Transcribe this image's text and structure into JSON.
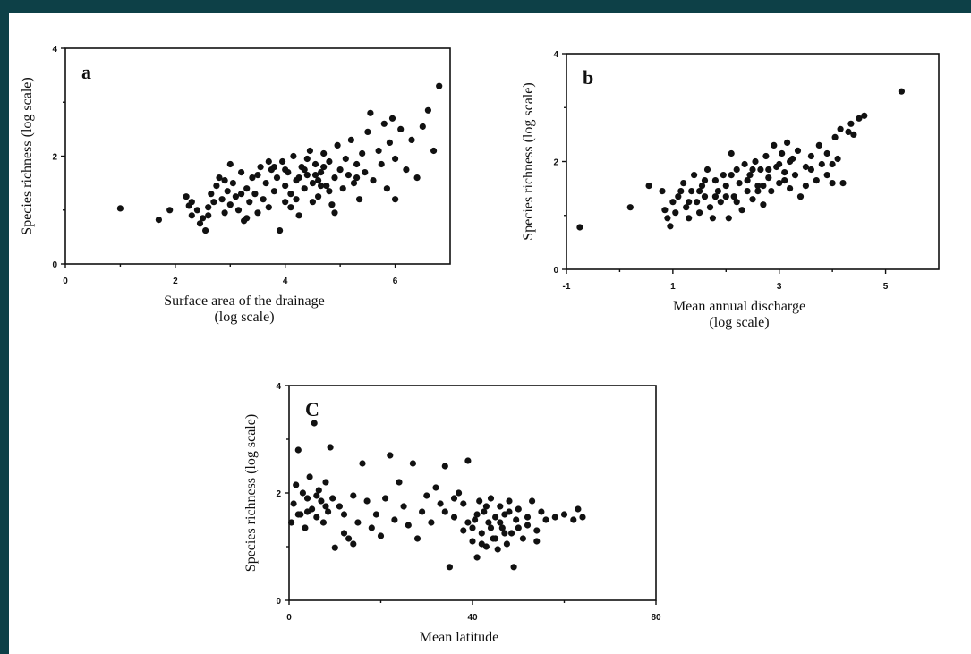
{
  "colors": {
    "frame": "#0d4047",
    "paper": "#ffffff",
    "ink": "#111111"
  },
  "chart_data": [
    {
      "id": "a",
      "type": "scatter",
      "panel_label": "a",
      "xlabel": [
        "Surface area of the drainage",
        "(log scale)"
      ],
      "ylabel": "Species richness (log scale)",
      "xlim": [
        0,
        7
      ],
      "ylim": [
        0,
        4
      ],
      "xticks": [
        0,
        2,
        4,
        6
      ],
      "xtick_labels": [
        "0",
        "2",
        "4",
        "6"
      ],
      "yticks": [
        0,
        2,
        4
      ],
      "ytick_labels": [
        "0",
        "2",
        "4"
      ],
      "grid": false,
      "points": [
        [
          1.0,
          1.03
        ],
        [
          1.7,
          0.82
        ],
        [
          1.9,
          1.0
        ],
        [
          2.2,
          1.25
        ],
        [
          2.25,
          1.08
        ],
        [
          2.3,
          0.9
        ],
        [
          2.4,
          1.0
        ],
        [
          2.45,
          0.75
        ],
        [
          2.5,
          0.85
        ],
        [
          2.55,
          0.62
        ],
        [
          2.6,
          1.05
        ],
        [
          2.65,
          1.3
        ],
        [
          2.7,
          1.15
        ],
        [
          2.75,
          1.45
        ],
        [
          2.8,
          1.6
        ],
        [
          2.85,
          1.2
        ],
        [
          2.9,
          0.95
        ],
        [
          2.95,
          1.35
        ],
        [
          3.0,
          1.1
        ],
        [
          3.0,
          1.85
        ],
        [
          3.05,
          1.5
        ],
        [
          3.1,
          1.25
        ],
        [
          3.15,
          1.0
        ],
        [
          3.2,
          1.7
        ],
        [
          3.25,
          0.8
        ],
        [
          3.3,
          1.4
        ],
        [
          3.35,
          1.15
        ],
        [
          3.4,
          1.6
        ],
        [
          3.45,
          1.3
        ],
        [
          3.5,
          0.95
        ],
        [
          3.55,
          1.8
        ],
        [
          3.6,
          1.2
        ],
        [
          3.65,
          1.5
        ],
        [
          3.7,
          1.05
        ],
        [
          3.75,
          1.75
        ],
        [
          3.8,
          1.35
        ],
        [
          3.85,
          1.6
        ],
        [
          3.9,
          0.62
        ],
        [
          3.95,
          1.9
        ],
        [
          4.0,
          1.45
        ],
        [
          4.0,
          1.15
        ],
        [
          4.05,
          1.7
        ],
        [
          4.1,
          1.3
        ],
        [
          4.15,
          2.0
        ],
        [
          4.2,
          1.55
        ],
        [
          4.25,
          0.9
        ],
        [
          4.3,
          1.8
        ],
        [
          4.35,
          1.4
        ],
        [
          4.4,
          1.65
        ],
        [
          4.45,
          2.1
        ],
        [
          4.5,
          1.5
        ],
        [
          4.55,
          1.85
        ],
        [
          4.6,
          1.25
        ],
        [
          4.65,
          1.7
        ],
        [
          4.7,
          2.05
        ],
        [
          4.75,
          1.45
        ],
        [
          4.8,
          1.9
        ],
        [
          4.85,
          1.1
        ],
        [
          4.9,
          1.6
        ],
        [
          4.95,
          2.2
        ],
        [
          5.0,
          1.75
        ],
        [
          5.05,
          1.4
        ],
        [
          5.1,
          1.95
        ],
        [
          5.15,
          1.65
        ],
        [
          5.2,
          2.3
        ],
        [
          5.25,
          1.5
        ],
        [
          5.3,
          1.85
        ],
        [
          5.35,
          1.2
        ],
        [
          5.4,
          2.05
        ],
        [
          5.45,
          1.7
        ],
        [
          5.5,
          2.45
        ],
        [
          5.55,
          2.8
        ],
        [
          5.6,
          1.55
        ],
        [
          5.7,
          2.1
        ],
        [
          5.75,
          1.85
        ],
        [
          5.8,
          2.6
        ],
        [
          5.85,
          1.4
        ],
        [
          5.9,
          2.25
        ],
        [
          5.95,
          2.7
        ],
        [
          6.0,
          1.95
        ],
        [
          6.0,
          1.2
        ],
        [
          6.1,
          2.5
        ],
        [
          6.2,
          1.75
        ],
        [
          6.3,
          2.3
        ],
        [
          6.4,
          1.6
        ],
        [
          6.5,
          2.55
        ],
        [
          6.6,
          2.85
        ],
        [
          6.7,
          2.1
        ],
        [
          6.8,
          3.3
        ],
        [
          2.3,
          1.15
        ],
        [
          2.6,
          0.9
        ],
        [
          2.9,
          1.55
        ],
        [
          3.2,
          1.3
        ],
        [
          3.5,
          1.65
        ],
        [
          3.7,
          1.9
        ],
        [
          4.0,
          1.75
        ],
        [
          4.2,
          1.2
        ],
        [
          4.4,
          1.95
        ],
        [
          4.6,
          1.55
        ],
        [
          4.8,
          1.35
        ],
        [
          3.3,
          0.85
        ],
        [
          4.1,
          1.05
        ],
        [
          4.9,
          0.95
        ],
        [
          5.3,
          1.6
        ],
        [
          4.5,
          1.15
        ],
        [
          3.8,
          1.8
        ],
        [
          4.35,
          1.75
        ],
        [
          4.7,
          1.8
        ],
        [
          4.55,
          1.65
        ],
        [
          4.25,
          1.6
        ],
        [
          4.65,
          1.45
        ]
      ]
    },
    {
      "id": "b",
      "type": "scatter",
      "panel_label": "b",
      "xlabel": [
        "Mean annual discharge",
        "(log scale)"
      ],
      "ylabel": "Species richness (log scale)",
      "xlim": [
        -1,
        6
      ],
      "ylim": [
        0,
        4
      ],
      "xticks": [
        -1,
        1,
        3,
        5
      ],
      "xtick_labels": [
        "-1",
        "1",
        "3",
        "5"
      ],
      "yticks": [
        0,
        2,
        4
      ],
      "ytick_labels": [
        "0",
        "2",
        "4"
      ],
      "grid": false,
      "points": [
        [
          -0.75,
          0.78
        ],
        [
          0.2,
          1.15
        ],
        [
          0.55,
          1.55
        ],
        [
          0.8,
          1.45
        ],
        [
          0.85,
          1.1
        ],
        [
          0.9,
          0.95
        ],
        [
          0.95,
          0.8
        ],
        [
          1.0,
          1.25
        ],
        [
          1.05,
          1.05
        ],
        [
          1.1,
          1.35
        ],
        [
          1.2,
          1.6
        ],
        [
          1.25,
          1.15
        ],
        [
          1.3,
          0.95
        ],
        [
          1.35,
          1.45
        ],
        [
          1.4,
          1.75
        ],
        [
          1.45,
          1.25
        ],
        [
          1.5,
          1.05
        ],
        [
          1.55,
          1.55
        ],
        [
          1.6,
          1.35
        ],
        [
          1.65,
          1.85
        ],
        [
          1.7,
          1.15
        ],
        [
          1.75,
          0.95
        ],
        [
          1.8,
          1.65
        ],
        [
          1.85,
          1.45
        ],
        [
          1.9,
          1.25
        ],
        [
          1.95,
          1.75
        ],
        [
          2.0,
          1.55
        ],
        [
          2.05,
          0.95
        ],
        [
          2.1,
          2.15
        ],
        [
          2.15,
          1.35
        ],
        [
          2.2,
          1.85
        ],
        [
          2.25,
          1.6
        ],
        [
          2.3,
          1.1
        ],
        [
          2.35,
          1.95
        ],
        [
          2.4,
          1.45
        ],
        [
          2.45,
          1.75
        ],
        [
          2.5,
          1.3
        ],
        [
          2.55,
          2.0
        ],
        [
          2.6,
          1.55
        ],
        [
          2.65,
          1.85
        ],
        [
          2.7,
          1.2
        ],
        [
          2.75,
          2.1
        ],
        [
          2.8,
          1.7
        ],
        [
          2.85,
          1.45
        ],
        [
          2.9,
          2.3
        ],
        [
          2.95,
          1.9
        ],
        [
          3.0,
          1.6
        ],
        [
          3.05,
          2.15
        ],
        [
          3.1,
          1.8
        ],
        [
          3.15,
          2.35
        ],
        [
          3.2,
          1.5
        ],
        [
          3.25,
          2.05
        ],
        [
          3.3,
          1.75
        ],
        [
          3.35,
          2.2
        ],
        [
          3.4,
          1.35
        ],
        [
          3.5,
          1.9
        ],
        [
          3.6,
          2.1
        ],
        [
          3.7,
          1.65
        ],
        [
          3.75,
          2.3
        ],
        [
          3.8,
          1.95
        ],
        [
          3.9,
          2.15
        ],
        [
          4.0,
          1.6
        ],
        [
          4.05,
          2.45
        ],
        [
          4.1,
          2.05
        ],
        [
          4.15,
          2.6
        ],
        [
          4.2,
          1.6
        ],
        [
          4.3,
          2.55
        ],
        [
          4.35,
          2.7
        ],
        [
          4.4,
          2.5
        ],
        [
          4.5,
          2.8
        ],
        [
          4.6,
          2.85
        ],
        [
          5.3,
          3.3
        ],
        [
          1.15,
          1.45
        ],
        [
          1.6,
          1.65
        ],
        [
          2.0,
          1.35
        ],
        [
          2.4,
          1.65
        ],
        [
          2.6,
          1.45
        ],
        [
          2.8,
          1.85
        ],
        [
          3.0,
          1.95
        ],
        [
          3.2,
          2.0
        ],
        [
          3.5,
          1.55
        ],
        [
          3.9,
          1.75
        ],
        [
          1.3,
          1.25
        ],
        [
          1.8,
          1.35
        ],
        [
          2.2,
          1.25
        ],
        [
          2.7,
          1.55
        ],
        [
          3.1,
          1.65
        ],
        [
          3.6,
          1.85
        ],
        [
          4.0,
          1.95
        ],
        [
          1.5,
          1.45
        ],
        [
          2.1,
          1.75
        ],
        [
          2.5,
          1.85
        ]
      ]
    },
    {
      "id": "c",
      "type": "scatter",
      "panel_label": "C",
      "xlabel": [
        "Mean latitude"
      ],
      "ylabel": "Species richness (log scale)",
      "xlim": [
        0,
        80
      ],
      "ylim": [
        0,
        4
      ],
      "xticks": [
        0,
        40,
        80
      ],
      "xtick_labels": [
        "0",
        "40",
        "80"
      ],
      "yticks": [
        0,
        2,
        4
      ],
      "ytick_labels": [
        "0",
        "2",
        "4"
      ],
      "grid": false,
      "points": [
        [
          0.5,
          1.45
        ],
        [
          1.0,
          1.8
        ],
        [
          1.5,
          2.15
        ],
        [
          2.0,
          2.8
        ],
        [
          2.5,
          1.6
        ],
        [
          3.0,
          2.0
        ],
        [
          3.5,
          1.35
        ],
        [
          4.0,
          1.9
        ],
        [
          4.5,
          2.3
        ],
        [
          5.0,
          1.7
        ],
        [
          5.5,
          3.3
        ],
        [
          6.0,
          1.55
        ],
        [
          6.5,
          2.05
        ],
        [
          7.0,
          1.85
        ],
        [
          7.5,
          1.45
        ],
        [
          8.0,
          2.2
        ],
        [
          8.5,
          1.65
        ],
        [
          9.0,
          2.85
        ],
        [
          9.5,
          1.9
        ],
        [
          10.0,
          0.98
        ],
        [
          11,
          1.75
        ],
        [
          12,
          1.6
        ],
        [
          13,
          1.15
        ],
        [
          14,
          1.95
        ],
        [
          15,
          1.45
        ],
        [
          16,
          2.55
        ],
        [
          17,
          1.85
        ],
        [
          18,
          1.35
        ],
        [
          19,
          1.6
        ],
        [
          20,
          1.2
        ],
        [
          21,
          1.9
        ],
        [
          22,
          2.7
        ],
        [
          23,
          1.5
        ],
        [
          24,
          2.2
        ],
        [
          25,
          1.75
        ],
        [
          26,
          1.4
        ],
        [
          27,
          2.55
        ],
        [
          28,
          1.15
        ],
        [
          29,
          1.65
        ],
        [
          30,
          1.95
        ],
        [
          31,
          1.45
        ],
        [
          32,
          2.1
        ],
        [
          33,
          1.8
        ],
        [
          34,
          2.5
        ],
        [
          35,
          0.62
        ],
        [
          36,
          1.55
        ],
        [
          37,
          2.0
        ],
        [
          38,
          1.3
        ],
        [
          39,
          2.6
        ],
        [
          40,
          1.1
        ],
        [
          40.5,
          1.5
        ],
        [
          41,
          0.8
        ],
        [
          41.5,
          1.85
        ],
        [
          42,
          1.25
        ],
        [
          42.5,
          1.65
        ],
        [
          43,
          1.0
        ],
        [
          43.5,
          1.45
        ],
        [
          44,
          1.9
        ],
        [
          44.5,
          1.15
        ],
        [
          45,
          1.55
        ],
        [
          45.5,
          0.95
        ],
        [
          46,
          1.75
        ],
        [
          46.5,
          1.35
        ],
        [
          47,
          1.6
        ],
        [
          47.5,
          1.05
        ],
        [
          48,
          1.85
        ],
        [
          48.5,
          1.25
        ],
        [
          49,
          0.62
        ],
        [
          49.5,
          1.5
        ],
        [
          50,
          1.7
        ],
        [
          51,
          1.15
        ],
        [
          52,
          1.4
        ],
        [
          53,
          1.85
        ],
        [
          54,
          1.3
        ],
        [
          55,
          1.65
        ],
        [
          56,
          1.5
        ],
        [
          58,
          1.55
        ],
        [
          60,
          1.6
        ],
        [
          62,
          1.5
        ],
        [
          63,
          1.7
        ],
        [
          64,
          1.55
        ],
        [
          2.0,
          1.6
        ],
        [
          4.0,
          1.65
        ],
        [
          6.0,
          1.95
        ],
        [
          8.0,
          1.75
        ],
        [
          38,
          1.8
        ],
        [
          39,
          1.45
        ],
        [
          40,
          1.35
        ],
        [
          41,
          1.6
        ],
        [
          42,
          1.05
        ],
        [
          43,
          1.75
        ],
        [
          44,
          1.35
        ],
        [
          45,
          1.15
        ],
        [
          46,
          1.45
        ],
        [
          47,
          1.25
        ],
        [
          48,
          1.65
        ],
        [
          50,
          1.35
        ],
        [
          52,
          1.55
        ],
        [
          54,
          1.1
        ],
        [
          36,
          1.9
        ],
        [
          34,
          1.65
        ],
        [
          12,
          1.25
        ],
        [
          14,
          1.05
        ]
      ]
    }
  ]
}
